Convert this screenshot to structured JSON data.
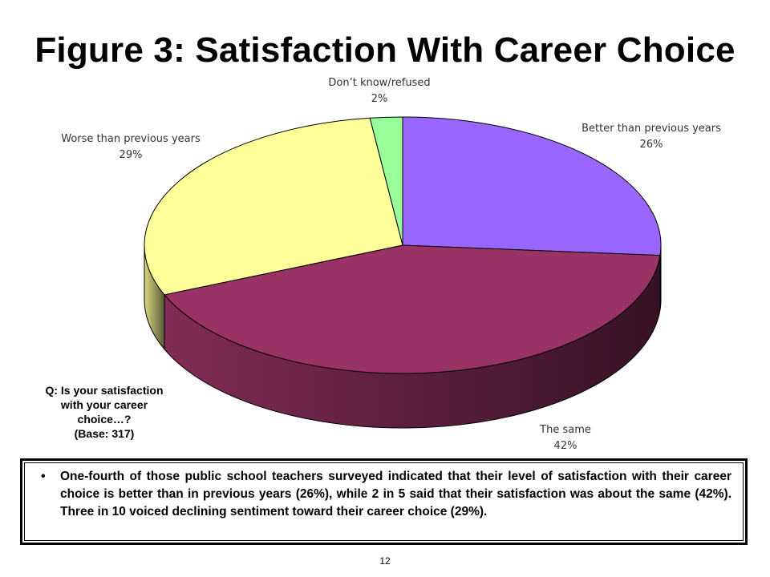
{
  "title": "Figure 3:  Satisfaction With Career Choice",
  "question": {
    "lines": [
      "Q:  Is your satisfaction",
      "with your career",
      "choice…?",
      "(Base: 317)"
    ]
  },
  "note": {
    "bullet": "•",
    "text": "One-fourth of those public school teachers surveyed indicated that their level of satisfaction with their career choice is better than in previous years (26%), while 2 in 5 said that their satisfaction was about the same (42%).  Three in 10 voiced declining sentiment toward their career choice (29%)."
  },
  "page_number": "12",
  "chart_data": {
    "type": "pie",
    "title": "Figure 3:  Satisfaction With Career Choice",
    "slices": [
      {
        "name": "Better than previous years",
        "value": 26,
        "label": "26%",
        "color": "#9966ff"
      },
      {
        "name": "The same",
        "value": 42,
        "label": "42%",
        "color": "#993366"
      },
      {
        "name": "Worse than previous years",
        "value": 29,
        "label": "29%",
        "color": "#ffff99"
      },
      {
        "name": "Don’t know/refused",
        "value": 2,
        "label": "2%",
        "color": "#99ff99"
      }
    ],
    "unit": "%",
    "start_angle_degrees": 0,
    "direction": "clockwise",
    "style": "3D"
  }
}
